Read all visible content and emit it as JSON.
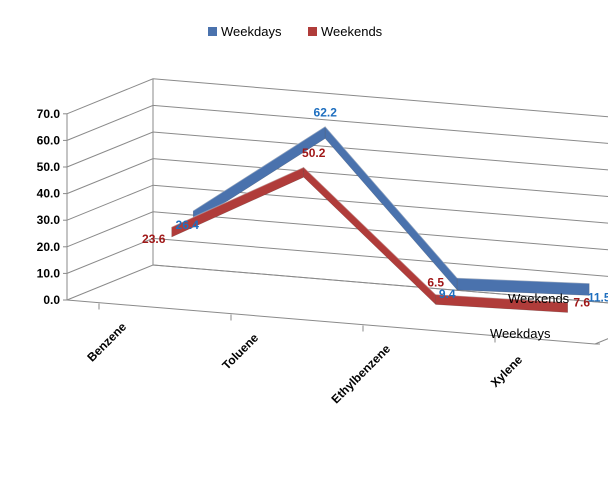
{
  "chart_data": {
    "type": "line",
    "subtype": "3d-ribbon",
    "title": "",
    "xlabel": "",
    "ylabel": "",
    "categories": [
      "Benzene",
      "Toluene",
      "Ethylbenzene",
      "Xylene"
    ],
    "series": [
      {
        "name": "Weekdays",
        "values": [
          26.4,
          62.2,
          9.4,
          11.5
        ],
        "color": "#4a72ad",
        "label_color": "#1f6fbf"
      },
      {
        "name": "Weekends",
        "values": [
          23.6,
          50.2,
          6.5,
          7.6
        ],
        "color": "#b03c3a",
        "label_color": "#a01818"
      }
    ],
    "yticks": [
      "0.0",
      "10.0",
      "20.0",
      "30.0",
      "40.0",
      "50.0",
      "60.0",
      "70.0"
    ],
    "ylim": [
      0,
      70
    ],
    "depth_labels": [
      "Weekends",
      "Weekdays"
    ],
    "legend_position": "top",
    "grid": true
  }
}
